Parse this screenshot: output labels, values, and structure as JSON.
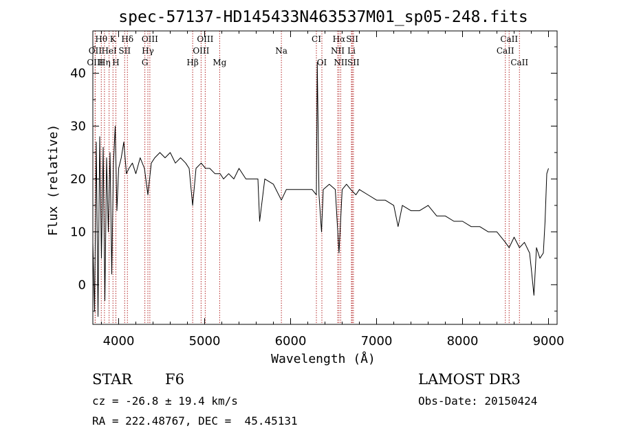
{
  "chart_data": {
    "type": "line",
    "title": "spec-57137-HD145433N463537M01_sp05-248.fits",
    "xlabel": "Wavelength (Å)",
    "ylabel": "Flux (relative)",
    "xlim": [
      3700,
      9100
    ],
    "ylim": [
      -7.5,
      48
    ],
    "xticks": [
      4000,
      5000,
      6000,
      7000,
      8000,
      9000
    ],
    "yticks": [
      0,
      10,
      20,
      30,
      40
    ],
    "series": [
      {
        "name": "spectrum",
        "x": [
          3700,
          3720,
          3740,
          3760,
          3780,
          3800,
          3820,
          3840,
          3860,
          3880,
          3900,
          3920,
          3940,
          3960,
          3980,
          4000,
          4030,
          4060,
          4090,
          4120,
          4160,
          4200,
          4250,
          4300,
          4340,
          4380,
          4420,
          4480,
          4540,
          4600,
          4660,
          4720,
          4780,
          4820,
          4861,
          4900,
          4960,
          5010,
          5060,
          5120,
          5180,
          5220,
          5280,
          5340,
          5400,
          5480,
          5560,
          5620,
          5640,
          5700,
          5800,
          5893,
          5950,
          6050,
          6150,
          6250,
          6300,
          6310,
          6330,
          6360,
          6380,
          6450,
          6520,
          6563,
          6600,
          6650,
          6700,
          6760,
          6800,
          6900,
          7000,
          7100,
          7200,
          7250,
          7300,
          7400,
          7500,
          7600,
          7700,
          7800,
          7900,
          8000,
          8100,
          8200,
          8300,
          8400,
          8498,
          8542,
          8600,
          8662,
          8720,
          8780,
          8800,
          8830,
          8860,
          8900,
          8940,
          8960,
          8980,
          9000
        ],
        "y": [
          8,
          -5,
          27,
          -6,
          28,
          5,
          26,
          -3,
          24,
          10,
          25,
          2,
          23,
          30,
          14,
          22,
          24,
          27,
          21,
          22,
          23,
          21,
          24,
          22,
          17,
          23,
          24,
          25,
          24,
          25,
          23,
          24,
          23,
          22,
          15,
          22,
          23,
          22,
          22,
          21,
          21,
          20,
          21,
          20,
          22,
          20,
          20,
          20,
          12,
          20,
          19,
          16,
          18,
          18,
          18,
          18,
          17,
          42,
          17,
          10,
          18,
          19,
          18,
          6,
          18,
          19,
          18,
          17,
          18,
          17,
          16,
          16,
          15,
          11,
          15,
          14,
          14,
          15,
          13,
          13,
          12,
          12,
          11,
          11,
          10,
          10,
          8,
          7,
          9,
          7,
          8,
          6,
          3,
          -2,
          7,
          5,
          6,
          12,
          21,
          22
        ]
      }
    ],
    "lines": [
      {
        "label": "Hθ",
        "x": 3798,
        "row": 1
      },
      {
        "label": "K",
        "x": 3934,
        "row": 1
      },
      {
        "label": "Hδ",
        "x": 4102,
        "row": 1
      },
      {
        "label": "OIII",
        "x": 4363,
        "row": 1
      },
      {
        "label": "OIII",
        "x": 5007,
        "row": 1
      },
      {
        "label": "CI",
        "x": 6300,
        "row": 1
      },
      {
        "label": "Hα",
        "x": 6563,
        "row": 1
      },
      {
        "label": "SII",
        "x": 6717,
        "row": 1
      },
      {
        "label": "CaII",
        "x": 8542,
        "row": 1
      },
      {
        "label": "OII",
        "x": 3727,
        "row": 2
      },
      {
        "label": "HeI",
        "x": 3889,
        "row": 2
      },
      {
        "label": "SII",
        "x": 4070,
        "row": 2
      },
      {
        "label": "Hγ",
        "x": 4340,
        "row": 2
      },
      {
        "label": "OIII",
        "x": 4959,
        "row": 2
      },
      {
        "label": "Na",
        "x": 5893,
        "row": 2
      },
      {
        "label": "NII",
        "x": 6548,
        "row": 2
      },
      {
        "label": "Li",
        "x": 6708,
        "row": 2
      },
      {
        "label": "CaII",
        "x": 8498,
        "row": 2
      },
      {
        "label": "OIII",
        "x": 3727,
        "row": 3
      },
      {
        "label": "Hη",
        "x": 3835,
        "row": 3
      },
      {
        "label": "H",
        "x": 3968,
        "row": 3
      },
      {
        "label": "G",
        "x": 4305,
        "row": 3
      },
      {
        "label": "Hβ",
        "x": 4861,
        "row": 3
      },
      {
        "label": "Mg",
        "x": 5175,
        "row": 3
      },
      {
        "label": "OI",
        "x": 6364,
        "row": 3
      },
      {
        "label": "NII",
        "x": 6583,
        "row": 3
      },
      {
        "label": "SII",
        "x": 6731,
        "row": 3
      },
      {
        "label": "CaII",
        "x": 8662,
        "row": 3
      }
    ],
    "grid": false
  },
  "info": {
    "object_class": "STAR",
    "subclass": "F6",
    "survey": "LAMOST DR3",
    "cz_line": "cz = -26.8 ± 19.4 km/s",
    "obs_date": "Obs-Date: 20150424",
    "coords": "RA = 222.48767, DEC =  45.45131"
  },
  "colors": {
    "axis": "#000000",
    "line_marker": "#b22222",
    "spectrum": "#000000"
  }
}
